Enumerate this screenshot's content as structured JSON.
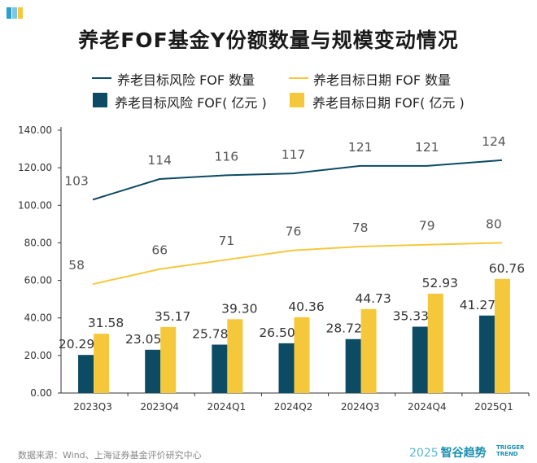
{
  "title": "养老FOF基金Y份额数量与规模变动情况",
  "legend": {
    "risk_count": "养老目标风险 FOF 数量",
    "date_count": "养老目标日期 FOF 数量",
    "risk_size": "养老目标风险 FOF( 亿元 )",
    "date_size": "养老目标日期 FOF( 亿元 )"
  },
  "footer": {
    "source": "数据来源：Wind、上海证券基金评价研究中心",
    "brand_year": "2025",
    "brand_name": "智谷趋势",
    "brand_en_1": "TRIGGER",
    "brand_en_2": "TREND"
  },
  "colors": {
    "risk": "#0d4a63",
    "date": "#f5c83c",
    "axis": "#333333",
    "brand": "#1a8fb0"
  },
  "chart_data": {
    "type": "bar",
    "title": "养老FOF基金Y份额数量与规模变动情况",
    "categories": [
      "2023Q3",
      "2023Q4",
      "2024Q1",
      "2024Q2",
      "2024Q3",
      "2024Q4",
      "2025Q1"
    ],
    "ylim": [
      0,
      140
    ],
    "yticks": [
      "0.00",
      "20.00",
      "40.00",
      "60.00",
      "80.00",
      "100.00",
      "120.00",
      "140.00"
    ],
    "series": [
      {
        "name": "养老目标风险 FOF( 亿元 )",
        "kind": "bar",
        "values": [
          20.29,
          23.05,
          25.78,
          26.5,
          28.72,
          35.33,
          41.27
        ],
        "labels": [
          "20.29",
          "23.05",
          "25.78",
          "26.50",
          "28.72",
          "35.33",
          "41.27"
        ]
      },
      {
        "name": "养老目标日期 FOF( 亿元 )",
        "kind": "bar",
        "values": [
          31.58,
          35.17,
          39.3,
          40.36,
          44.73,
          52.93,
          60.76
        ],
        "labels": [
          "31.58",
          "35.17",
          "39.30",
          "40.36",
          "44.73",
          "52.93",
          "60.76"
        ]
      },
      {
        "name": "养老目标风险 FOF 数量",
        "kind": "line",
        "values": [
          103,
          114,
          116,
          117,
          121,
          121,
          124
        ],
        "labels": [
          "103",
          "114",
          "116",
          "117",
          "121",
          "121",
          "124"
        ]
      },
      {
        "name": "养老目标日期 FOF 数量",
        "kind": "line",
        "values": [
          58,
          66,
          71,
          76,
          78,
          79,
          80
        ],
        "labels": [
          "58",
          "66",
          "71",
          "76",
          "78",
          "79",
          "80"
        ]
      }
    ]
  }
}
